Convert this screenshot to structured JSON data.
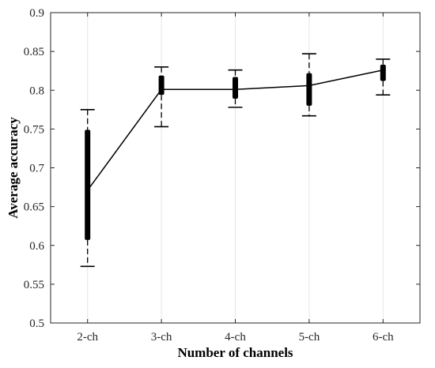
{
  "chart_data": {
    "type": "boxplot-line",
    "title": "",
    "xlabel": "Number of channels",
    "ylabel": "Average accuracy",
    "categories": [
      "2-ch",
      "3-ch",
      "4-ch",
      "5-ch",
      "6-ch"
    ],
    "y_ticks": [
      "0.5",
      "0.55",
      "0.6",
      "0.65",
      "0.7",
      "0.75",
      "0.8",
      "0.85",
      "0.9"
    ],
    "ylim": [
      0.5,
      0.9
    ],
    "grid": "vertical",
    "series": [
      {
        "values": [
          0.671,
          0.801,
          0.801,
          0.806,
          0.826
        ]
      }
    ],
    "boxes": [
      {
        "category": "2-ch",
        "whisker_low": 0.573,
        "q1": 0.607,
        "q3": 0.749,
        "whisker_high": 0.775
      },
      {
        "category": "3-ch",
        "whisker_low": 0.753,
        "q1": 0.794,
        "q3": 0.819,
        "whisker_high": 0.83
      },
      {
        "category": "4-ch",
        "whisker_low": 0.778,
        "q1": 0.789,
        "q3": 0.817,
        "whisker_high": 0.826
      },
      {
        "category": "5-ch",
        "whisker_low": 0.767,
        "q1": 0.78,
        "q3": 0.822,
        "whisker_high": 0.847
      },
      {
        "category": "6-ch",
        "whisker_low": 0.794,
        "q1": 0.812,
        "q3": 0.833,
        "whisker_high": 0.84
      }
    ],
    "colors": {
      "line": "#000000",
      "box": "#000000",
      "grid": "#e6e6e6",
      "axis": "#262626"
    }
  }
}
